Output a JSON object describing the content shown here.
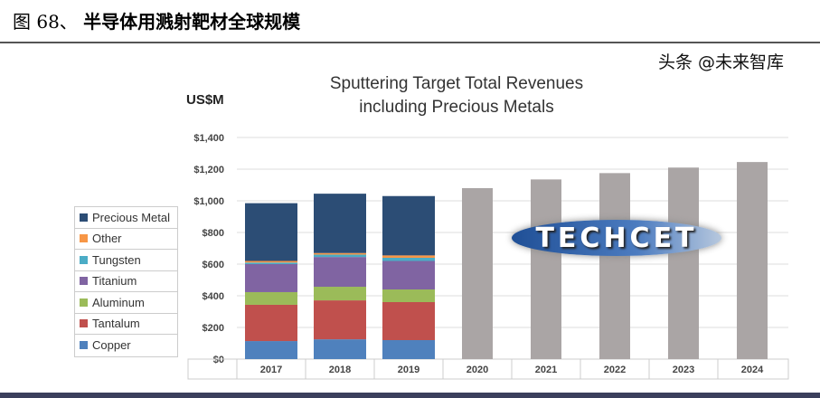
{
  "figure_title": {
    "number": "图 68、",
    "text": "半导体用溅射靶材全球规模"
  },
  "watermark": "头条 @未来智库",
  "logo_text": "TECHCET",
  "chart_data": {
    "type": "bar",
    "stacked": true,
    "title": "Sputtering Target Total Revenues including Precious Metals",
    "title_lines": [
      "Sputtering Target Total Revenues",
      "including Precious Metals"
    ],
    "ylabel": "US$M",
    "xlabel": "",
    "ylim": [
      0,
      1400
    ],
    "yticks": [
      "$0",
      "$200",
      "$400",
      "$600",
      "$800",
      "$1,000",
      "$1,200",
      "$1,400"
    ],
    "ytick_values": [
      0,
      200,
      400,
      600,
      800,
      1000,
      1200,
      1400
    ],
    "grid": true,
    "legend_position": "left",
    "categories": [
      "2017",
      "2018",
      "2019",
      "2020",
      "2021",
      "2022",
      "2023",
      "2024"
    ],
    "series": [
      {
        "name": "Copper",
        "color": "#4f81bd",
        "values": [
          114,
          125,
          120,
          null,
          null,
          null,
          null,
          null
        ]
      },
      {
        "name": "Tantalum",
        "color": "#c0504d",
        "values": [
          229,
          246,
          240,
          null,
          null,
          null,
          null,
          null
        ]
      },
      {
        "name": "Aluminum",
        "color": "#9bbb59",
        "values": [
          80,
          86,
          80,
          null,
          null,
          null,
          null,
          null
        ]
      },
      {
        "name": "Titanium",
        "color": "#8064a2",
        "values": [
          177,
          188,
          180,
          null,
          null,
          null,
          null,
          null
        ]
      },
      {
        "name": "Tungsten",
        "color": "#4bacc6",
        "values": [
          10,
          15,
          20,
          null,
          null,
          null,
          null,
          null
        ]
      },
      {
        "name": "Other",
        "color": "#f79646",
        "values": [
          10,
          10,
          15,
          null,
          null,
          null,
          null,
          null
        ]
      },
      {
        "name": "Precious Metal",
        "color": "#2c4d75",
        "values": [
          365,
          375,
          375,
          null,
          null,
          null,
          null,
          null
        ]
      }
    ],
    "forecast_totals": {
      "color": "#aaa5a5",
      "values": [
        null,
        null,
        null,
        1080,
        1135,
        1175,
        1210,
        1245
      ]
    }
  }
}
